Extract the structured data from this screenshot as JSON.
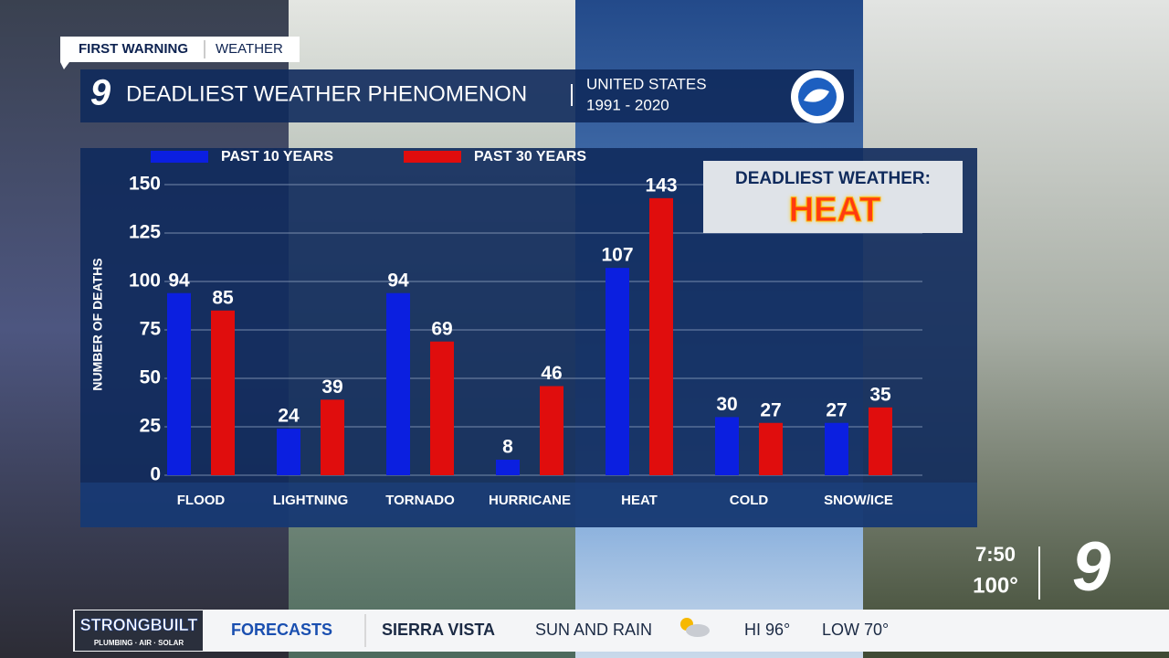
{
  "header": {
    "brand": "FIRST WARNING",
    "section": "WEATHER",
    "channel": "9",
    "title": "DEADLIEST WEATHER PHENOMENON",
    "region": "UNITED STATES",
    "period": "1991 - 2020"
  },
  "chart_data": {
    "type": "bar",
    "ylabel": "NUMBER OF DEATHS",
    "categories": [
      "FLOOD",
      "LIGHTNING",
      "TORNADO",
      "HURRICANE",
      "HEAT",
      "COLD",
      "SNOW/ICE"
    ],
    "series": [
      {
        "name": "PAST 10 YEARS",
        "color": "#0b1fe0",
        "values": [
          94,
          24,
          94,
          8,
          107,
          30,
          27
        ]
      },
      {
        "name": "PAST 30 YEARS",
        "color": "#e00d0d",
        "values": [
          85,
          39,
          69,
          46,
          143,
          27,
          35
        ]
      }
    ],
    "ylim": [
      0,
      150
    ],
    "yticks": [
      0,
      25,
      50,
      75,
      100,
      125,
      150
    ],
    "grid": true,
    "annotation": {
      "label": "DEADLIEST WEATHER:",
      "value": "HEAT"
    }
  },
  "bug": {
    "time": "7:50",
    "temperature": "100°",
    "channel": "9"
  },
  "ticker": {
    "sponsor": "STRONGBUILT",
    "sponsor_tagline": "PLUMBING · AIR · SOLAR",
    "section": "FORECASTS",
    "location": "SIERRA VISTA",
    "conditions": "SUN AND RAIN",
    "high": "HI 96°",
    "low": "LOW 70°"
  }
}
